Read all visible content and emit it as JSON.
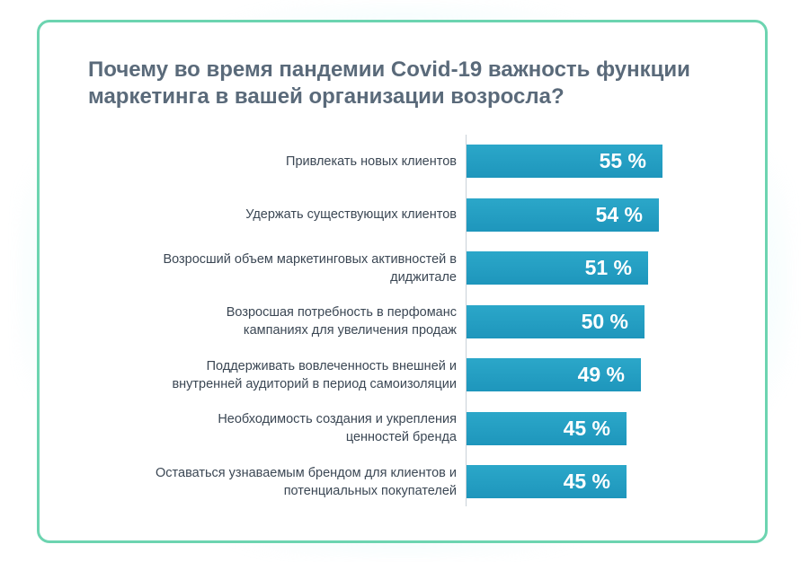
{
  "title": "Почему во время пандемии Covid-19 важность функции маркетинга в вашей организации возросла?",
  "colors": {
    "bar": "#1e96bc",
    "border": "#6cd4b0",
    "title": "#5a6a7a",
    "label": "#3b4754"
  },
  "chart_data": {
    "type": "bar",
    "orientation": "horizontal",
    "title": "Почему во время пандемии Covid-19 важность функции маркетинга в вашей организации возросла?",
    "categories": [
      "Привлекать новых клиентов",
      "Удержать существующих клиентов",
      "Возросший объем маркетинговых активностей в диджитале",
      "Возросшая потребность в перфоманс кампаниях для увеличения продаж",
      "Поддерживать вовлеченность внешней и внутренней аудиторий в период самоизоляции",
      "Необходимость создания и укрепления ценностей бренда",
      "Оставаться узнаваемым брендом для клиентов и потенциальных покупателей"
    ],
    "label_lines": [
      [
        "Привлекать новых клиентов"
      ],
      [
        "Удержать существующих клиентов"
      ],
      [
        "Возросший объем маркетинговых активностей в",
        "диджитале"
      ],
      [
        "Возросшая потребность в перфоманс",
        "кампаниях для увеличения продаж"
      ],
      [
        "Поддерживать вовлеченность внешней и",
        "внутренней аудиторий в период самоизоляции"
      ],
      [
        "Необходимость создания и укрепления",
        "ценностей бренда"
      ],
      [
        "Оставаться узнаваемым брендом для клиентов и",
        "потенциальных покупателей"
      ]
    ],
    "values": [
      55,
      54,
      51,
      50,
      49,
      45,
      45
    ],
    "value_labels": [
      "55 %",
      "54 %",
      "51 %",
      "50 %",
      "49 %",
      "45 %",
      "45 %"
    ],
    "unit": "%",
    "xlabel": "",
    "ylabel": "",
    "grid": false,
    "legend": "none"
  }
}
